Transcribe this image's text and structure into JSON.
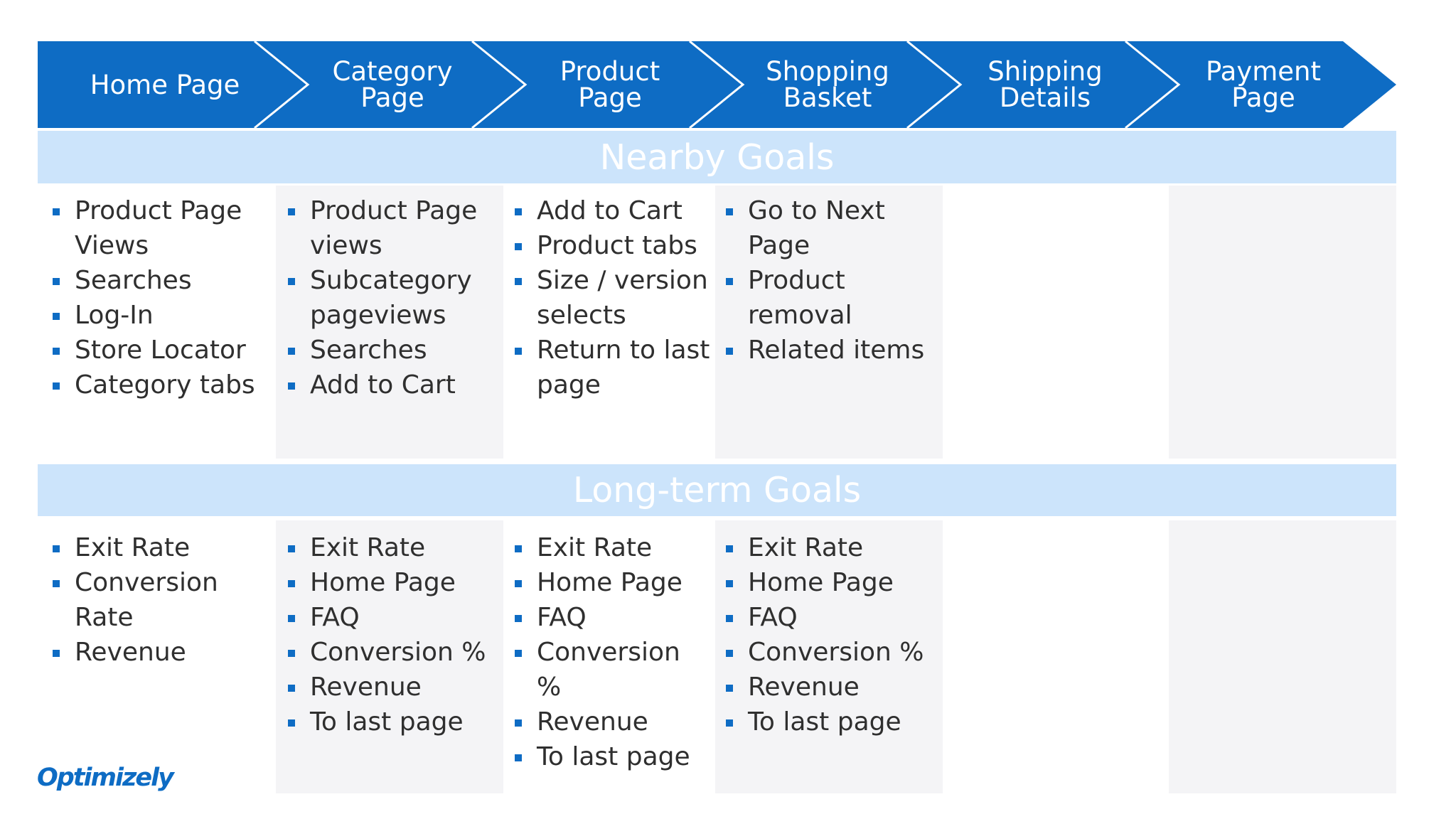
{
  "colors": {
    "chevron_fill": "#0e6cc4",
    "band_fill": "#cce4fb",
    "column_shade": "#f4f4f6",
    "bullet": "#0e6cc4"
  },
  "funnel": {
    "steps": [
      {
        "label": "Home Page"
      },
      {
        "label": "Category\nPage"
      },
      {
        "label": "Product\nPage"
      },
      {
        "label": "Shopping\nBasket"
      },
      {
        "label": "Shipping\nDetails"
      },
      {
        "label": "Payment\nPage"
      }
    ]
  },
  "nearby": {
    "title": "Nearby Goals",
    "columns": [
      [
        "Product Page Views",
        "Searches",
        "Log-In",
        "Store Locator",
        "Category tabs"
      ],
      [
        "Product Page views",
        "Subcategory pageviews",
        "Searches",
        "Add to Cart"
      ],
      [
        "Add to Cart",
        "Product tabs",
        "Size / version selects",
        "Return to last page"
      ],
      [
        "Go to Next Page",
        "Product removal",
        "Related items"
      ],
      [],
      []
    ]
  },
  "longterm": {
    "title": "Long-term Goals",
    "columns": [
      [
        "Exit Rate",
        "Conversion Rate",
        "Revenue"
      ],
      [
        "Exit Rate",
        "Home Page",
        "FAQ",
        "Conversion %",
        "Revenue",
        "To last page"
      ],
      [
        "Exit Rate",
        "Home Page",
        "FAQ",
        "Conversion %",
        "Revenue",
        "To last page"
      ],
      [
        "Exit Rate",
        "Home Page",
        "FAQ",
        "Conversion %",
        "Revenue",
        "To last page"
      ],
      [],
      []
    ]
  },
  "logo": {
    "text": "Optimizely"
  }
}
